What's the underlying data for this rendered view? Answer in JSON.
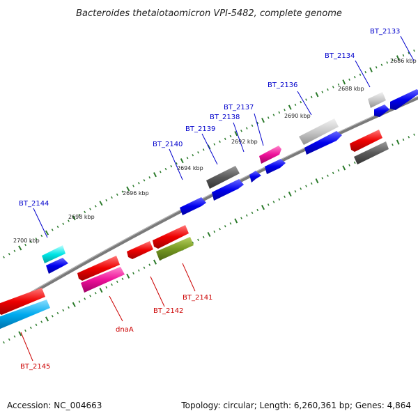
{
  "title": "Bacteroides thetaiotaomicron VPI-5482, complete genome",
  "footer": {
    "accession": "Accession: NC_004663",
    "summary": "Topology: circular; Length: 6,260,361 bp; Genes: 4,864"
  },
  "colors": {
    "backbone": "#7a7a7a",
    "forward_label": "#0000cc",
    "reverse_label": "#cc0000",
    "ticks": "#2a7a2a"
  },
  "scale_labels": [
    "2686 kbp",
    "2688 kbp",
    "2690 kbp",
    "2692 kbp",
    "2694 kbp",
    "2696 kbp",
    "2698 kbp",
    "2700 kbp"
  ],
  "genes": [
    {
      "label": "BT_2133",
      "strand": "forward",
      "color": "#0000ee"
    },
    {
      "label": "BT_2134",
      "strand": "forward",
      "color": "#0000ee"
    },
    {
      "label": "BT_2136",
      "strand": "forward",
      "color": "#0000ee"
    },
    {
      "label": "BT_2137",
      "strand": "forward",
      "color": "#ee1199"
    },
    {
      "label": "BT_2138",
      "strand": "forward",
      "color": "#0000ee"
    },
    {
      "label": "BT_2139",
      "strand": "forward",
      "color": "#0000ee"
    },
    {
      "label": "BT_2140",
      "strand": "forward",
      "color": "#0000ee"
    },
    {
      "label": "BT_2144",
      "strand": "forward",
      "color": "#00dddd"
    },
    {
      "label": "BT_2141",
      "strand": "reverse",
      "color": "#779922"
    },
    {
      "label": "BT_2142",
      "strand": "reverse",
      "color": "#ee0000"
    },
    {
      "label": "dnaA",
      "strand": "reverse",
      "color": "#ee1199"
    },
    {
      "label": "BT_2145",
      "strand": "reverse",
      "color": "#00aaee"
    }
  ]
}
